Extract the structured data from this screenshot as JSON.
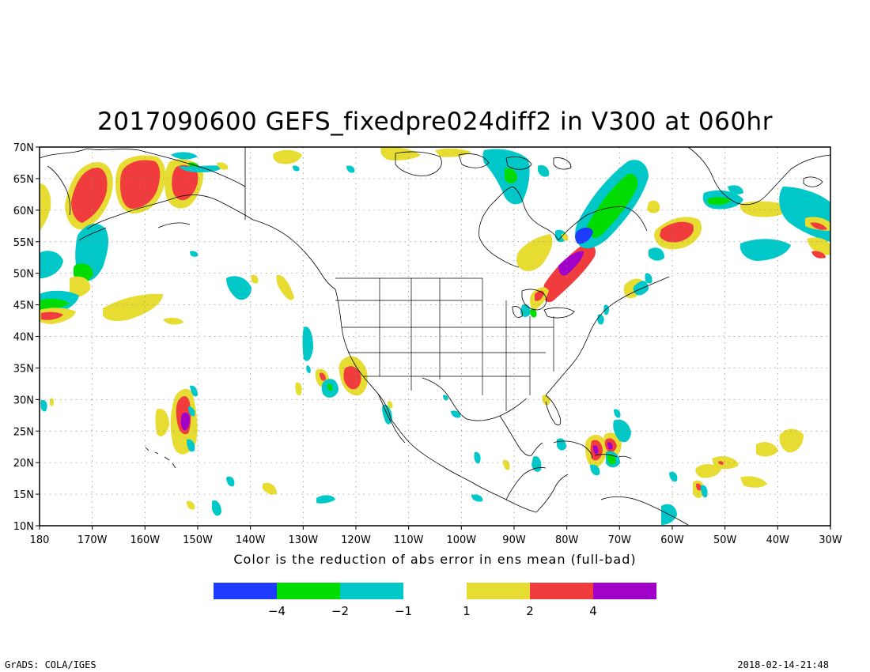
{
  "title": "2017090600 GEFS_fixedpre024diff2 in V300 at 060hr",
  "x_caption": "Color is the reduction of abs error in ens mean (full-bad)",
  "lat_labels": [
    "70N",
    "65N",
    "60N",
    "55N",
    "50N",
    "45N",
    "40N",
    "35N",
    "30N",
    "25N",
    "20N",
    "15N",
    "10N"
  ],
  "lat_values": [
    70,
    65,
    60,
    55,
    50,
    45,
    40,
    35,
    30,
    25,
    20,
    15,
    10
  ],
  "lon_labels": [
    "180",
    "170W",
    "160W",
    "150W",
    "140W",
    "130W",
    "120W",
    "110W",
    "100W",
    "90W",
    "80W",
    "70W",
    "60W",
    "50W",
    "40W",
    "30W"
  ],
  "lon_values": [
    -180,
    -170,
    -160,
    -150,
    -140,
    -130,
    -120,
    -110,
    -100,
    -90,
    -80,
    -70,
    -60,
    -50,
    -40,
    -30
  ],
  "extent": {
    "lon_min": -180,
    "lon_max": -30,
    "lat_min": 10,
    "lat_max": 70
  },
  "colors": {
    "neg4": "#1e3cff",
    "neg2": "#00dc00",
    "neg1": "#00c8c8",
    "pos1": "#e6dc32",
    "pos2": "#f03c3c",
    "pos4": "#a000c8"
  },
  "legend": {
    "left": [
      {
        "color_key": "neg4",
        "label": "−4"
      },
      {
        "color_key": "neg2",
        "label": "−2"
      },
      {
        "color_key": "neg1",
        "label": "−1"
      }
    ],
    "right": [
      {
        "color_key": "pos1",
        "label": "1"
      },
      {
        "color_key": "pos2",
        "label": "2"
      },
      {
        "color_key": "pos4",
        "label": "4"
      }
    ]
  },
  "footer_left": "GrADS: COLA/IGES",
  "footer_right": "2018-02-14-21:48"
}
